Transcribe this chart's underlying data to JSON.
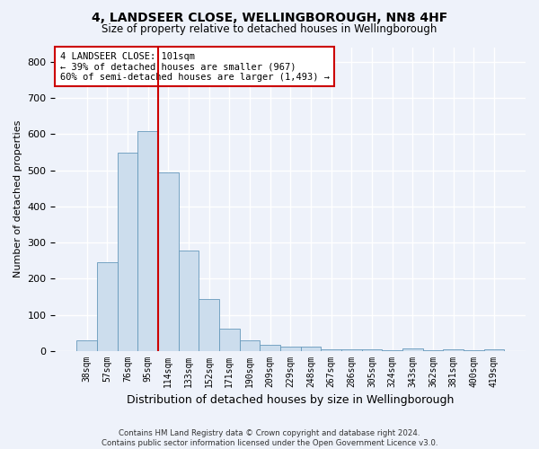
{
  "title_line1": "4, LANDSEER CLOSE, WELLINGBOROUGH, NN8 4HF",
  "title_line2": "Size of property relative to detached houses in Wellingborough",
  "xlabel": "Distribution of detached houses by size in Wellingborough",
  "ylabel": "Number of detached properties",
  "footnote": "Contains HM Land Registry data © Crown copyright and database right 2024.\nContains public sector information licensed under the Open Government Licence v3.0.",
  "categories": [
    "38sqm",
    "57sqm",
    "76sqm",
    "95sqm",
    "114sqm",
    "133sqm",
    "152sqm",
    "171sqm",
    "190sqm",
    "209sqm",
    "229sqm",
    "248sqm",
    "267sqm",
    "286sqm",
    "305sqm",
    "324sqm",
    "343sqm",
    "362sqm",
    "381sqm",
    "400sqm",
    "419sqm"
  ],
  "values": [
    30,
    246,
    549,
    607,
    494,
    277,
    145,
    62,
    30,
    17,
    13,
    12,
    5,
    5,
    5,
    3,
    7,
    3,
    5,
    3,
    4
  ],
  "bar_color": "#ccdded",
  "bar_edge_color": "#6699bb",
  "background_color": "#eef2fa",
  "annotation_line1": "4 LANDSEER CLOSE: 101sqm",
  "annotation_line2": "← 39% of detached houses are smaller (967)",
  "annotation_line3": "60% of semi-detached houses are larger (1,493) →",
  "vline_color": "#cc0000",
  "vline_position": 3.5,
  "box_color": "#cc0000",
  "ylim": [
    0,
    840
  ],
  "yticks": [
    0,
    100,
    200,
    300,
    400,
    500,
    600,
    700,
    800
  ]
}
